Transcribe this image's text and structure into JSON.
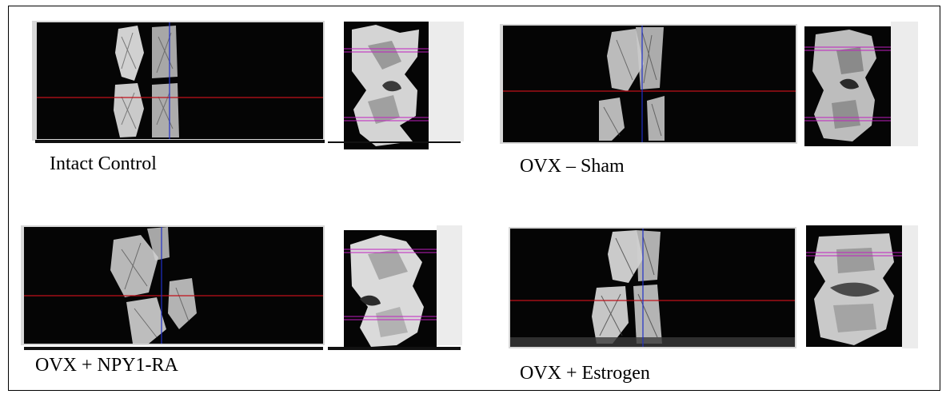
{
  "panels": [
    {
      "id": "intact-control",
      "label": "Intact Control"
    },
    {
      "id": "ovx-sham",
      "label": "OVX – Sham"
    },
    {
      "id": "ovx-npy1-ra",
      "label": "OVX + NPY1-RA"
    },
    {
      "id": "ovx-estrogen",
      "label": "OVX + Estrogen"
    }
  ],
  "colors": {
    "crosshair_horizontal": "#c0101a",
    "crosshair_vertical": "#2030c8",
    "render_marker": "#c020c0",
    "background": "#050505"
  }
}
